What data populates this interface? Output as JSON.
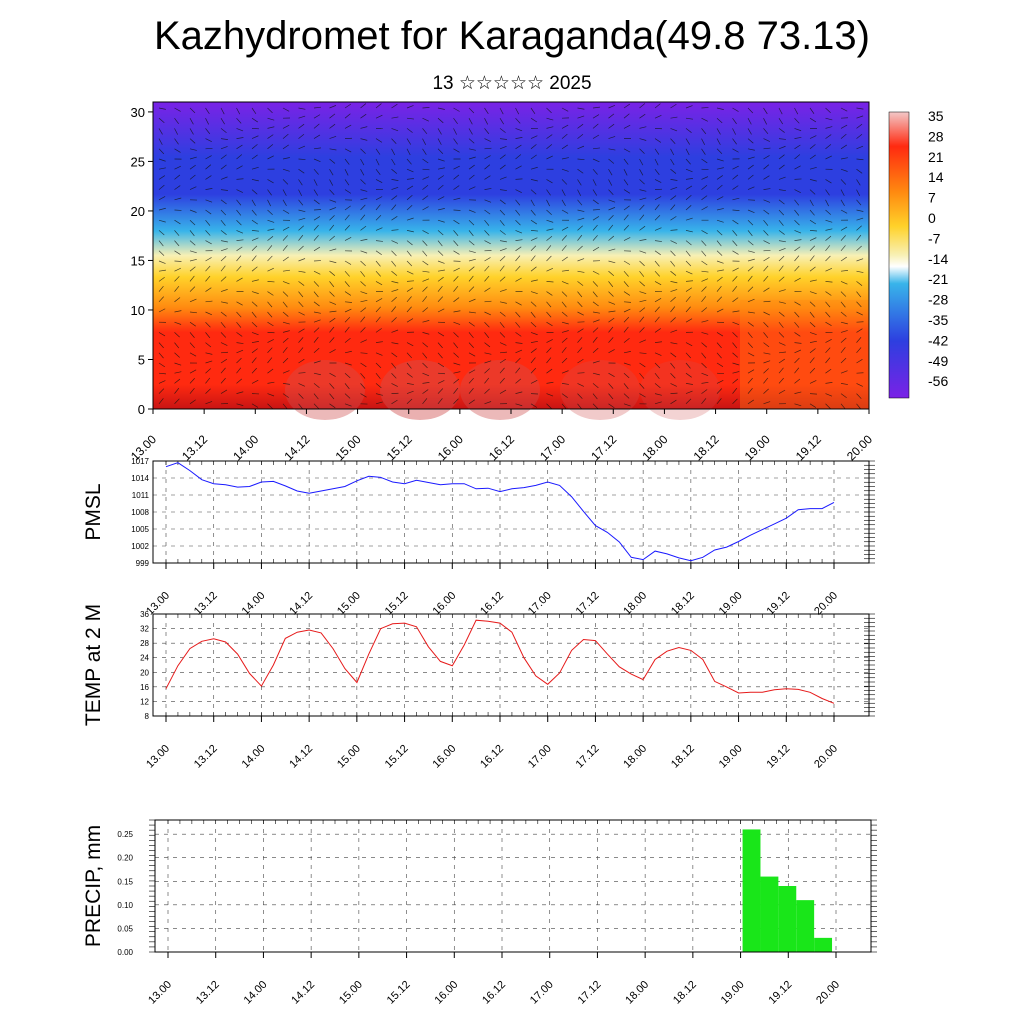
{
  "title": "Kazhydromet for Karaganda(49.8 73.13)",
  "subtitle": "13 ☆☆☆☆☆ 2025",
  "time_labels": [
    "13.00",
    "13.12",
    "14.00",
    "14.12",
    "15.00",
    "15.12",
    "16.00",
    "16.12",
    "17.00",
    "17.12",
    "18.00",
    "18.12",
    "19.00",
    "19.12",
    "20.00"
  ],
  "chart_data": [
    {
      "type": "heatmap",
      "ylim": [
        0,
        31
      ],
      "y_ticks": [
        0,
        5,
        10,
        15,
        20,
        25,
        30
      ],
      "colorbar_labels": [
        "35",
        "28",
        "21",
        "14",
        "7",
        "0",
        "-7",
        "-14",
        "-21",
        "-28",
        "-35",
        "-42",
        "-49",
        "-56"
      ],
      "colorbar_range": [
        -60,
        38
      ],
      "colors": {
        "cold": "#7a22e6",
        "blue": "#2d3fe0",
        "cyan": "#38b4ea",
        "pale": "#f8f0b4",
        "yellow": "#ffd22a",
        "orange": "#ff8a10",
        "red": "#ff2a10",
        "dark_red": "#c81414"
      },
      "note_vectors": "wind vectors overlaid"
    },
    {
      "type": "line",
      "ylabel": "PMSL",
      "ylim": [
        999,
        1017
      ],
      "y_ticks": [
        999,
        1002,
        1005,
        1008,
        1011,
        1014,
        1017
      ],
      "color": "#1a1aff",
      "values": [
        1016.0,
        1016.7,
        1015.3,
        1013.7,
        1013.0,
        1012.8,
        1012.4,
        1012.5,
        1013.3,
        1013.4,
        1012.6,
        1011.7,
        1011.3,
        1011.7,
        1012.1,
        1012.5,
        1013.5,
        1014.3,
        1014.1,
        1013.3,
        1013.0,
        1013.6,
        1013.2,
        1012.8,
        1013.0,
        1013.0,
        1012.1,
        1012.2,
        1011.6,
        1012.1,
        1012.3,
        1012.7,
        1013.3,
        1012.7,
        1010.7,
        1008.1,
        1005.6,
        1004.4,
        1002.7,
        1000.0,
        999.6,
        1001.1,
        1000.6,
        999.9,
        999.4,
        1000.0,
        1001.3,
        1001.8,
        1002.8,
        1003.9,
        1004.9,
        1005.9,
        1006.9,
        1008.4,
        1008.6,
        1008.6,
        1009.7
      ]
    },
    {
      "type": "line",
      "ylabel": "TEMP at 2 M",
      "ylim": [
        8,
        36
      ],
      "y_ticks": [
        8,
        12,
        16,
        20,
        24,
        28,
        32,
        36
      ],
      "color": "#e61a1a",
      "values": [
        15.5,
        21.8,
        26.5,
        28.5,
        29.2,
        28.3,
        25.0,
        19.7,
        16.2,
        22.0,
        29.3,
        31.0,
        31.6,
        30.8,
        26.5,
        21.0,
        17.2,
        25.0,
        32.0,
        33.3,
        33.5,
        32.5,
        27.0,
        23.0,
        21.8,
        27.5,
        34.3,
        34.0,
        33.5,
        31.0,
        24.0,
        19.0,
        16.7,
        19.8,
        26.0,
        29.0,
        28.7,
        25.0,
        21.5,
        19.5,
        18.0,
        23.5,
        25.8,
        26.8,
        26.0,
        23.5,
        17.5,
        16.0,
        14.3,
        14.5,
        14.5,
        15.2,
        15.5,
        15.3,
        14.5,
        12.8,
        11.5
      ]
    },
    {
      "type": "bar",
      "ylabel": "PRECIP, mm",
      "ylim": [
        0,
        0.28
      ],
      "y_ticks": [
        "0.00",
        "0.05",
        "0.10",
        "0.15",
        "0.20",
        "0.25"
      ],
      "color": "#19e619",
      "bars": [
        {
          "start": "19.00",
          "value": 0.26
        },
        {
          "start": "19.03",
          "value": 0.16
        },
        {
          "start": "19.06",
          "value": 0.14
        },
        {
          "start": "19.09",
          "value": 0.11
        },
        {
          "start": "19.12",
          "value": 0.03
        }
      ]
    }
  ]
}
